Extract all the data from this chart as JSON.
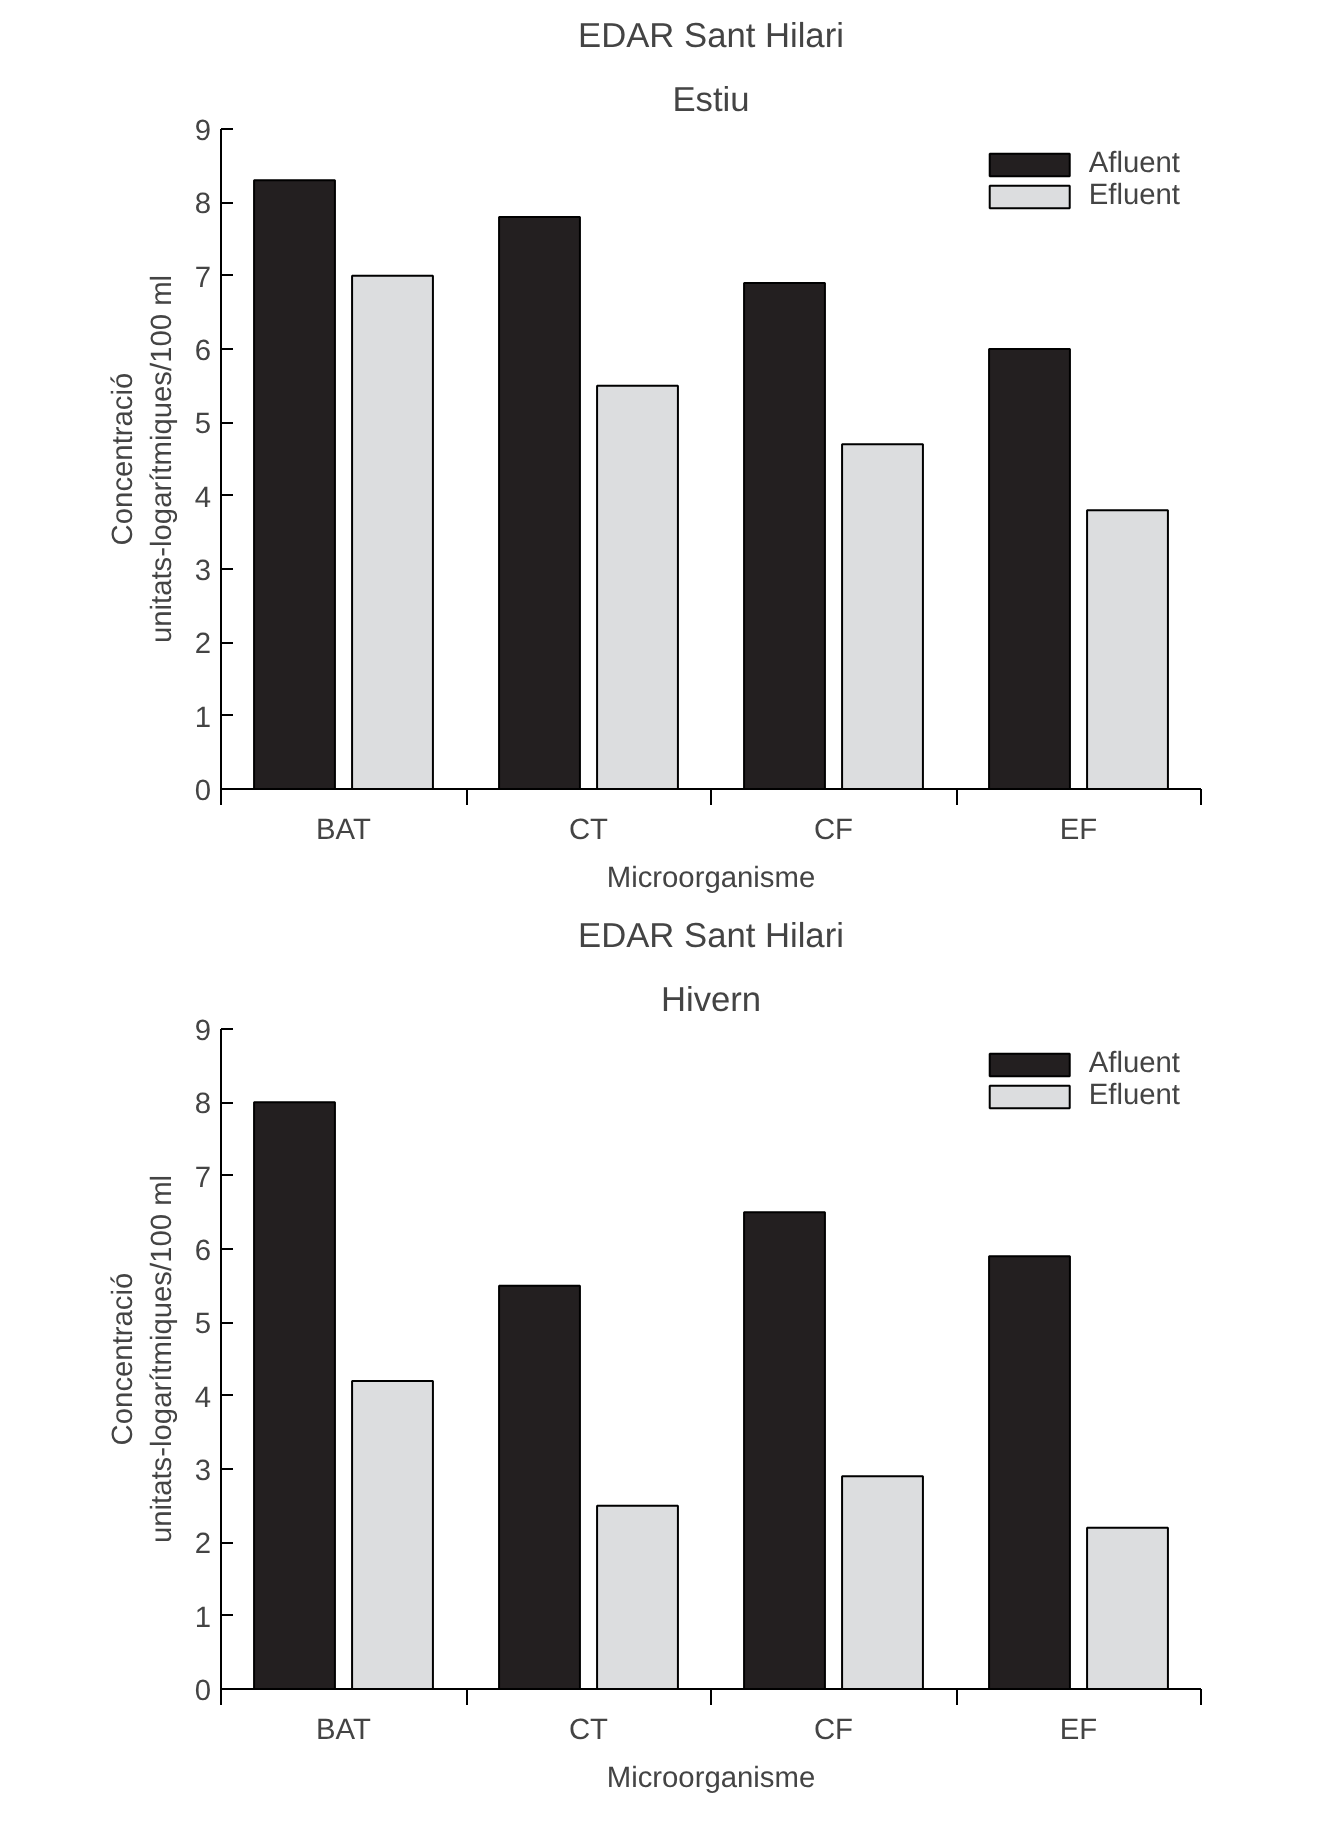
{
  "chart_data": [
    {
      "type": "bar",
      "title": "EDAR Sant Hilari",
      "subtitle": "Estiu",
      "xlabel": "Microorganisme",
      "ylabel": "Concentració\nunitats-logarítmiques/100 ml",
      "categories": [
        "BAT",
        "CT",
        "CF",
        "EF"
      ],
      "series": [
        {
          "name": "Afluent",
          "color": "#231f20",
          "values": [
            8.3,
            7.8,
            6.9,
            6.0
          ]
        },
        {
          "name": "Efluent",
          "color": "#dcdddf",
          "values": [
            7.0,
            5.5,
            4.7,
            3.8
          ]
        }
      ],
      "ylim": [
        0,
        9
      ],
      "yticks": [
        0,
        1,
        2,
        3,
        4,
        5,
        6,
        7,
        8,
        9
      ],
      "grid": false,
      "legend": "top right"
    },
    {
      "type": "bar",
      "title": "EDAR Sant Hilari",
      "subtitle": "Hivern",
      "xlabel": "Microorganisme",
      "ylabel": "Concentració\nunitats-logarítmiques/100 ml",
      "categories": [
        "BAT",
        "CT",
        "CF",
        "EF"
      ],
      "series": [
        {
          "name": "Afluent",
          "color": "#231f20",
          "values": [
            8.0,
            5.5,
            6.5,
            5.9
          ]
        },
        {
          "name": "Efluent",
          "color": "#dcdddf",
          "values": [
            4.2,
            2.5,
            2.9,
            2.2
          ]
        }
      ],
      "ylim": [
        0,
        9
      ],
      "yticks": [
        0,
        1,
        2,
        3,
        4,
        5,
        6,
        7,
        8,
        9
      ],
      "grid": false,
      "legend": "top right"
    }
  ]
}
